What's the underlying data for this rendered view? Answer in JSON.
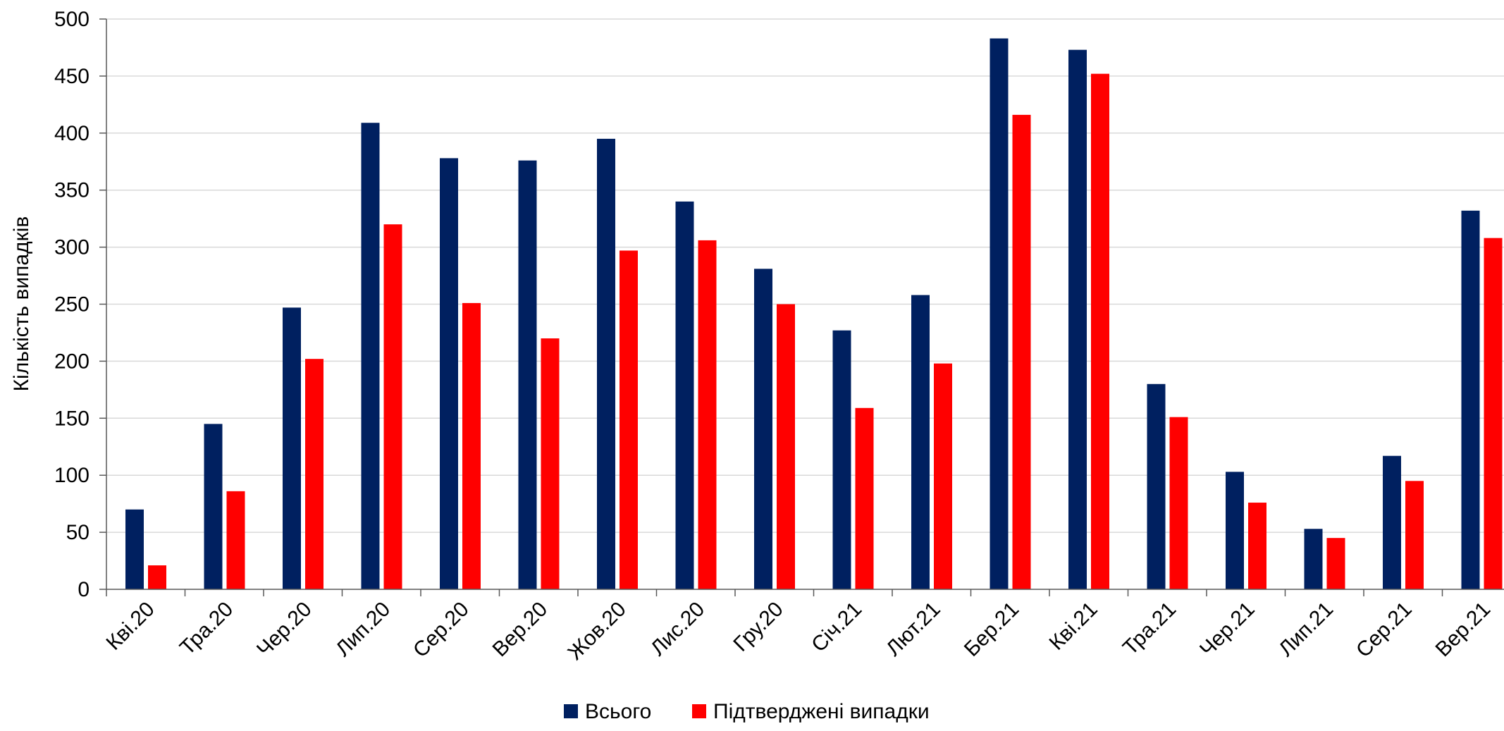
{
  "chart_data": {
    "type": "bar",
    "ylabel": "Кількість випадків",
    "xlabel": "",
    "ylim": [
      0,
      500
    ],
    "yticks": [
      0,
      50,
      100,
      150,
      200,
      250,
      300,
      350,
      400,
      450,
      500
    ],
    "grid": true,
    "legend_position": "bottom",
    "categories": [
      "Кві.20",
      "Тра.20",
      "Чер.20",
      "Лип.20",
      "Сер.20",
      "Вер.20",
      "Жов.20",
      "Лис.20",
      "Гру.20",
      "Січ.21",
      "Лют.21",
      "Бер.21",
      "Кві.21",
      "Тра.21",
      "Чер.21",
      "Лип.21",
      "Сер.21",
      "Вер.21"
    ],
    "series": [
      {
        "name": "Всього",
        "color": "#002060",
        "values": [
          70,
          145,
          247,
          409,
          378,
          376,
          395,
          340,
          281,
          227,
          258,
          483,
          473,
          180,
          103,
          53,
          117,
          332
        ]
      },
      {
        "name": "Підтверджені випадки",
        "color": "#ff0000",
        "values": [
          21,
          86,
          202,
          320,
          251,
          220,
          297,
          306,
          250,
          159,
          198,
          416,
          452,
          151,
          76,
          45,
          95,
          308
        ]
      }
    ]
  }
}
